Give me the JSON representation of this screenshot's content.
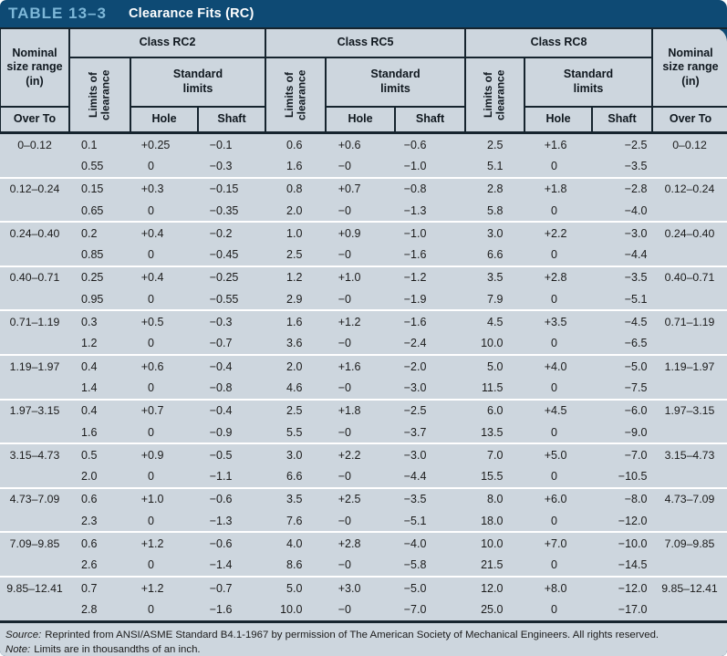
{
  "title": {
    "table_label": "TABLE 13–3",
    "table_title": "Clearance Fits (RC)"
  },
  "table": {
    "nominal_header": "Nominal size range (in)",
    "over_to": "Over To",
    "class_headers": [
      "Class RC2",
      "Class RC5",
      "Class RC8"
    ],
    "limits_of_clearance": "Limits of clearance",
    "standard_limits": "Standard limits",
    "hole": "Hole",
    "shaft": "Shaft",
    "groups": [
      {
        "range": "0–0.12",
        "rc2": {
          "clearance": [
            "0.1",
            "0.55"
          ],
          "hole": [
            "+0.25",
            "0"
          ],
          "shaft": [
            "−0.1",
            "−0.3"
          ]
        },
        "rc5": {
          "clearance": [
            "0.6",
            "1.6"
          ],
          "hole": [
            "+0.6",
            "−0"
          ],
          "shaft": [
            "−0.6",
            "−1.0"
          ]
        },
        "rc8": {
          "clearance": [
            "2.5",
            "5.1"
          ],
          "hole": [
            "+1.6",
            "0"
          ],
          "shaft": [
            "−2.5",
            "−3.5"
          ]
        }
      },
      {
        "range": "0.12–0.24",
        "rc2": {
          "clearance": [
            "0.15",
            "0.65"
          ],
          "hole": [
            "+0.3",
            "0"
          ],
          "shaft": [
            "−0.15",
            "−0.35"
          ]
        },
        "rc5": {
          "clearance": [
            "0.8",
            "2.0"
          ],
          "hole": [
            "+0.7",
            "−0"
          ],
          "shaft": [
            "−0.8",
            "−1.3"
          ]
        },
        "rc8": {
          "clearance": [
            "2.8",
            "5.8"
          ],
          "hole": [
            "+1.8",
            "0"
          ],
          "shaft": [
            "−2.8",
            "−4.0"
          ]
        }
      },
      {
        "range": "0.24–0.40",
        "rc2": {
          "clearance": [
            "0.2",
            "0.85"
          ],
          "hole": [
            "+0.4",
            "0"
          ],
          "shaft": [
            "−0.2",
            "−0.45"
          ]
        },
        "rc5": {
          "clearance": [
            "1.0",
            "2.5"
          ],
          "hole": [
            "+0.9",
            "−0"
          ],
          "shaft": [
            "−1.0",
            "−1.6"
          ]
        },
        "rc8": {
          "clearance": [
            "3.0",
            "6.6"
          ],
          "hole": [
            "+2.2",
            "0"
          ],
          "shaft": [
            "−3.0",
            "−4.4"
          ]
        }
      },
      {
        "range": "0.40–0.71",
        "rc2": {
          "clearance": [
            "0.25",
            "0.95"
          ],
          "hole": [
            "+0.4",
            "0"
          ],
          "shaft": [
            "−0.25",
            "−0.55"
          ]
        },
        "rc5": {
          "clearance": [
            "1.2",
            "2.9"
          ],
          "hole": [
            "+1.0",
            "−0"
          ],
          "shaft": [
            "−1.2",
            "−1.9"
          ]
        },
        "rc8": {
          "clearance": [
            "3.5",
            "7.9"
          ],
          "hole": [
            "+2.8",
            "0"
          ],
          "shaft": [
            "−3.5",
            "−5.1"
          ]
        }
      },
      {
        "range": "0.71–1.19",
        "rc2": {
          "clearance": [
            "0.3",
            "1.2"
          ],
          "hole": [
            "+0.5",
            "0"
          ],
          "shaft": [
            "−0.3",
            "−0.7"
          ]
        },
        "rc5": {
          "clearance": [
            "1.6",
            "3.6"
          ],
          "hole": [
            "+1.2",
            "−0"
          ],
          "shaft": [
            "−1.6",
            "−2.4"
          ]
        },
        "rc8": {
          "clearance": [
            "4.5",
            "10.0"
          ],
          "hole": [
            "+3.5",
            "0"
          ],
          "shaft": [
            "−4.5",
            "−6.5"
          ]
        }
      },
      {
        "range": "1.19–1.97",
        "rc2": {
          "clearance": [
            "0.4",
            "1.4"
          ],
          "hole": [
            "+0.6",
            "0"
          ],
          "shaft": [
            "−0.4",
            "−0.8"
          ]
        },
        "rc5": {
          "clearance": [
            "2.0",
            "4.6"
          ],
          "hole": [
            "+1.6",
            "−0"
          ],
          "shaft": [
            "−2.0",
            "−3.0"
          ]
        },
        "rc8": {
          "clearance": [
            "5.0",
            "11.5"
          ],
          "hole": [
            "+4.0",
            "0"
          ],
          "shaft": [
            "−5.0",
            "−7.5"
          ]
        }
      },
      {
        "range": "1.97–3.15",
        "rc2": {
          "clearance": [
            "0.4",
            "1.6"
          ],
          "hole": [
            "+0.7",
            "0"
          ],
          "shaft": [
            "−0.4",
            "−0.9"
          ]
        },
        "rc5": {
          "clearance": [
            "2.5",
            "5.5"
          ],
          "hole": [
            "+1.8",
            "−0"
          ],
          "shaft": [
            "−2.5",
            "−3.7"
          ]
        },
        "rc8": {
          "clearance": [
            "6.0",
            "13.5"
          ],
          "hole": [
            "+4.5",
            "0"
          ],
          "shaft": [
            "−6.0",
            "−9.0"
          ]
        }
      },
      {
        "range": "3.15–4.73",
        "rc2": {
          "clearance": [
            "0.5",
            "2.0"
          ],
          "hole": [
            "+0.9",
            "0"
          ],
          "shaft": [
            "−0.5",
            "−1.1"
          ]
        },
        "rc5": {
          "clearance": [
            "3.0",
            "6.6"
          ],
          "hole": [
            "+2.2",
            "−0"
          ],
          "shaft": [
            "−3.0",
            "−4.4"
          ]
        },
        "rc8": {
          "clearance": [
            "7.0",
            "15.5"
          ],
          "hole": [
            "+5.0",
            "0"
          ],
          "shaft": [
            "−7.0",
            "−10.5"
          ]
        }
      },
      {
        "range": "4.73–7.09",
        "rc2": {
          "clearance": [
            "0.6",
            "2.3"
          ],
          "hole": [
            "+1.0",
            "0"
          ],
          "shaft": [
            "−0.6",
            "−1.3"
          ]
        },
        "rc5": {
          "clearance": [
            "3.5",
            "7.6"
          ],
          "hole": [
            "+2.5",
            "−0"
          ],
          "shaft": [
            "−3.5",
            "−5.1"
          ]
        },
        "rc8": {
          "clearance": [
            "8.0",
            "18.0"
          ],
          "hole": [
            "+6.0",
            "0"
          ],
          "shaft": [
            "−8.0",
            "−12.0"
          ]
        }
      },
      {
        "range": "7.09–9.85",
        "rc2": {
          "clearance": [
            "0.6",
            "2.6"
          ],
          "hole": [
            "+1.2",
            "0"
          ],
          "shaft": [
            "−0.6",
            "−1.4"
          ]
        },
        "rc5": {
          "clearance": [
            "4.0",
            "8.6"
          ],
          "hole": [
            "+2.8",
            "−0"
          ],
          "shaft": [
            "−4.0",
            "−5.8"
          ]
        },
        "rc8": {
          "clearance": [
            "10.0",
            "21.5"
          ],
          "hole": [
            "+7.0",
            "0"
          ],
          "shaft": [
            "−10.0",
            "−14.5"
          ]
        }
      },
      {
        "range": "9.85–12.41",
        "rc2": {
          "clearance": [
            "0.7",
            "2.8"
          ],
          "hole": [
            "+1.2",
            "0"
          ],
          "shaft": [
            "−0.7",
            "−1.6"
          ]
        },
        "rc5": {
          "clearance": [
            "5.0",
            "10.0"
          ],
          "hole": [
            "+3.0",
            "−0"
          ],
          "shaft": [
            "−5.0",
            "−7.0"
          ]
        },
        "rc8": {
          "clearance": [
            "12.0",
            "25.0"
          ],
          "hole": [
            "+8.0",
            "0"
          ],
          "shaft": [
            "−12.0",
            "−17.0"
          ]
        }
      }
    ]
  },
  "footer": {
    "source_label": "Source:",
    "source_text": "Reprinted from ANSI/ASME Standard B4.1-1967 by permission of The American Society of Mechanical Engineers. All rights reserved.",
    "note_label": "Note:",
    "note_text": "Limits are in thousandths of an inch."
  },
  "colors": {
    "header_bar": "#0e4a74",
    "table_label_text": "#7db7d8",
    "table_title_text": "#ffffff",
    "panel_background": "#cdd6de",
    "border_dark": "#16242e",
    "row_separator": "#ffffff",
    "body_text": "#1b1b1b"
  }
}
